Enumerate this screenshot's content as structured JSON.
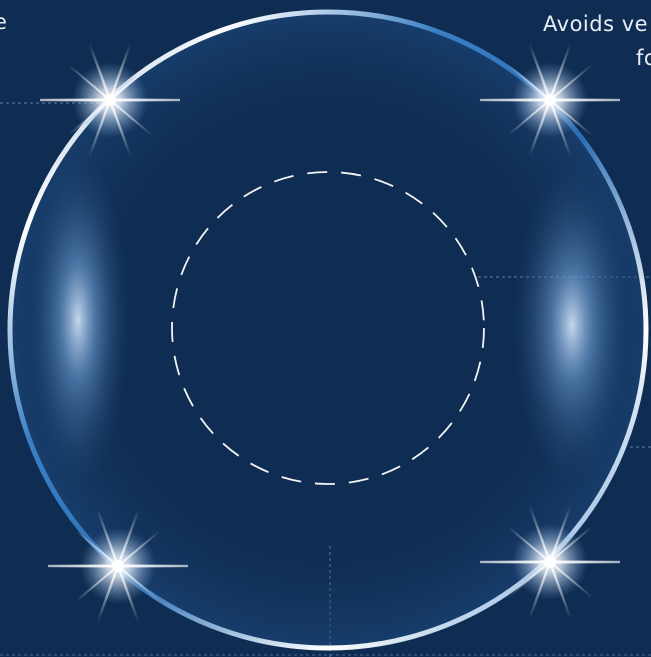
{
  "captions": {
    "left_fragment": "e",
    "right_line1_fragment": "Avoids ve",
    "right_line2_fragment": "fo"
  },
  "colors": {
    "background": "#0f2d52",
    "ring_edge": "#3a7fc4",
    "ring_highlight": "#ffffff",
    "flare": "#ffffff",
    "guide_line": "#7fa6d3",
    "dashed_circle": "#ffffff"
  },
  "icons": {
    "flare": "lens-flare-icon",
    "inner_circle": "dashed-circle-icon"
  }
}
